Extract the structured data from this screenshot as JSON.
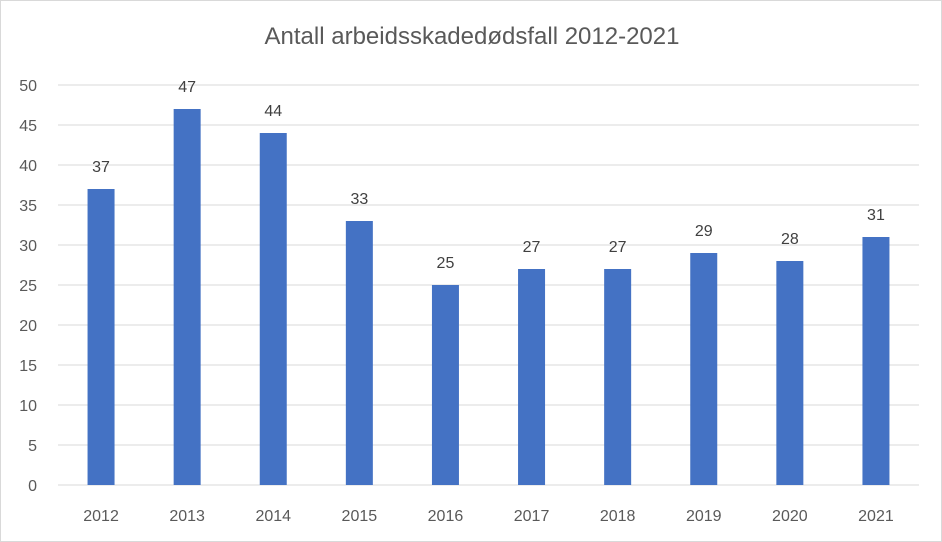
{
  "chart_data": {
    "type": "bar",
    "title": "Antall arbeidsskadedødsfall 2012-2021",
    "xlabel": "",
    "ylabel": "",
    "categories": [
      "2012",
      "2013",
      "2014",
      "2015",
      "2016",
      "2017",
      "2018",
      "2019",
      "2020",
      "2021"
    ],
    "values": [
      37,
      47,
      44,
      33,
      25,
      27,
      27,
      29,
      28,
      31
    ],
    "ylim": [
      0,
      50
    ],
    "yticks": [
      0,
      5,
      10,
      15,
      20,
      25,
      30,
      35,
      40,
      45,
      50
    ],
    "grid": true,
    "legend": "none",
    "data_labels": true,
    "bar_color": "#4472c4",
    "grid_color": "#d9d9d9"
  }
}
